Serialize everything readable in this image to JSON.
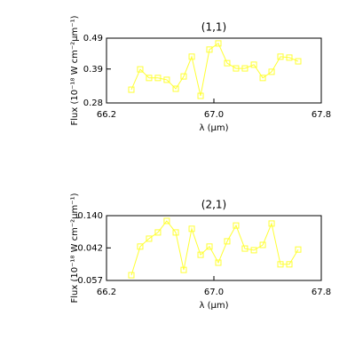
{
  "chart_data": [
    {
      "type": "line",
      "title": "(1,1)",
      "xlabel": "λ (μm)",
      "ylabel": "Flux (10⁻¹⁸ W cm⁻²μm⁻¹)",
      "xlim": [
        66.2,
        67.8
      ],
      "xticks": [
        66.2,
        {
          "value": 67.0,
          "label": "67.0"
        },
        67.8
      ],
      "ylim": [
        0.28,
        0.49
      ],
      "yticks": [
        0.28,
        0.39,
        0.49
      ],
      "series": [
        {
          "name": "(1,1)",
          "color": "#ffff33",
          "x": [
            66.385,
            66.451,
            66.517,
            66.583,
            66.649,
            66.716,
            66.775,
            66.835,
            66.901,
            66.967,
            67.033,
            67.099,
            67.165,
            67.231,
            67.298,
            67.364,
            67.43,
            67.496,
            67.562,
            67.628
          ],
          "values": [
            0.323,
            0.389,
            0.361,
            0.361,
            0.355,
            0.326,
            0.366,
            0.43,
            0.303,
            0.453,
            0.473,
            0.409,
            0.392,
            0.392,
            0.404,
            0.361,
            0.381,
            0.43,
            0.427,
            0.415
          ]
        }
      ]
    },
    {
      "type": "line",
      "title": "(2,1)",
      "xlabel": "λ (μm)",
      "ylabel": "Flux (10⁻¹⁸ W cm⁻²μm⁻¹)",
      "xlim": [
        66.2,
        67.8
      ],
      "xticks": [
        66.2,
        {
          "value": 67.0,
          "label": "67.0"
        },
        67.8
      ],
      "ylim": [
        -0.057,
        0.14
      ],
      "yticks": [
        -0.057,
        0.042,
        {
          "value": 0.14,
          "label": "0.140"
        }
      ],
      "series": [
        {
          "name": "(2,1)",
          "color": "#ffff33",
          "x": [
            66.385,
            66.451,
            66.517,
            66.583,
            66.649,
            66.716,
            66.775,
            66.835,
            66.901,
            66.967,
            67.033,
            67.099,
            67.165,
            67.231,
            67.298,
            67.364,
            67.43,
            67.496,
            67.562,
            67.628
          ],
          "values": [
            -0.041,
            0.046,
            0.07,
            0.089,
            0.124,
            0.089,
            -0.025,
            0.1,
            0.021,
            0.046,
            -0.003,
            0.062,
            0.11,
            0.04,
            0.035,
            0.051,
            0.116,
            -0.008,
            -0.008,
            0.037
          ]
        }
      ]
    }
  ]
}
